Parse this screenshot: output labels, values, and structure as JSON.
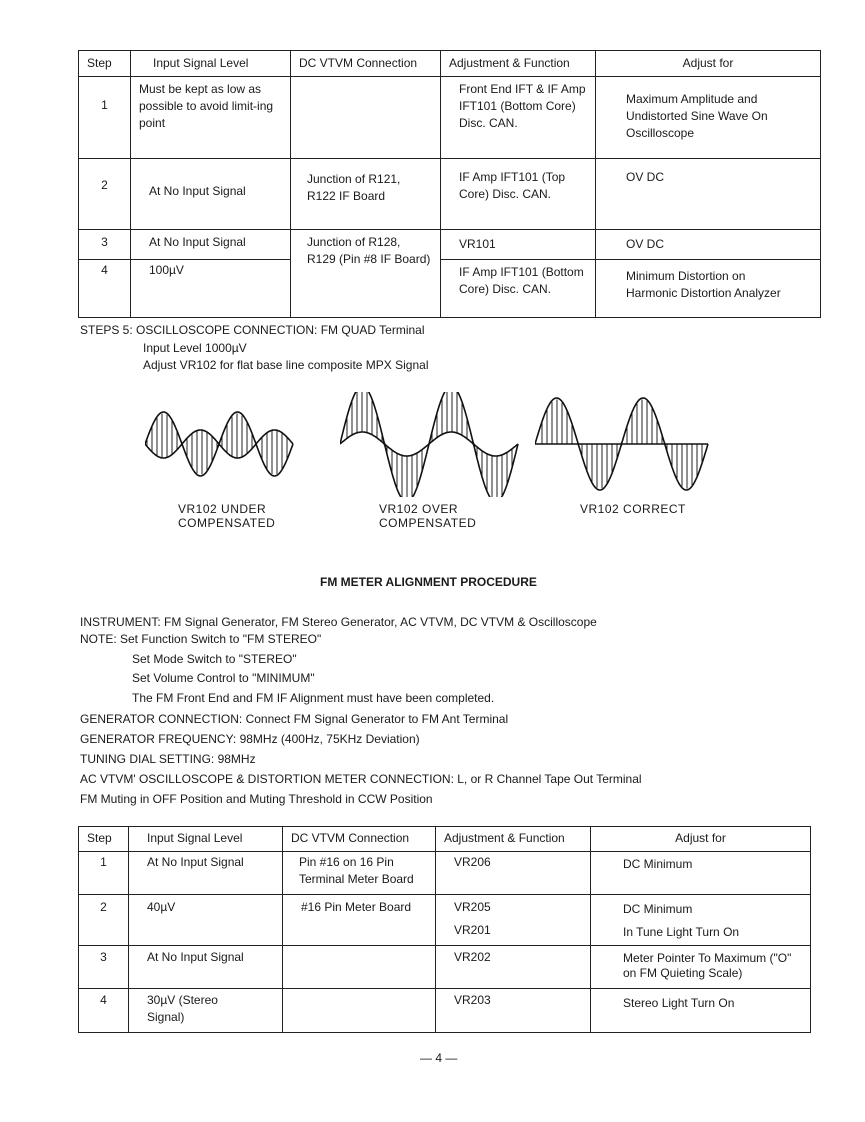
{
  "table1": {
    "headers": [
      "Step",
      "Input Signal Level",
      "DC VTVM Connection",
      "Adjustment & Function",
      "Adjust for"
    ],
    "rows": [
      {
        "step": "1",
        "input": "Must be kept as low as possible to avoid limit-ing point",
        "dc": "",
        "adj": "Front End IFT & IF Amp IFT101 (Bottom Core) Disc. CAN.",
        "for": "Maximum Amplitude and Undistorted Sine Wave On Oscilloscope"
      },
      {
        "step": "2",
        "input": "At No Input Signal",
        "dc": "Junction of R121, R122 IF Board",
        "adj": "IF Amp IFT101 (Top Core) Disc. CAN.",
        "for": "OV DC"
      },
      {
        "step": "3",
        "input": "At No Input Signal",
        "dc": "Junction of R128, R129 (Pin #8 IF Board)",
        "adj": "VR101",
        "for": "OV DC"
      },
      {
        "step": "4",
        "input": "100µV",
        "adj": "IF Amp IFT101 (Bottom Core) Disc. CAN.",
        "for": "Minimum Distortion on Harmonic Distortion Analyzer"
      }
    ]
  },
  "steps5": {
    "line1": "STEPS 5:  OSCILLOSCOPE CONNECTION: FM QUAD Terminal",
    "line2": "Input Level 1000µV",
    "line3": "Adjust VR102 for flat base line composite MPX Signal"
  },
  "waveforms": [
    {
      "label1": "VR102 UNDER",
      "label2": "COMPENSATED"
    },
    {
      "label1": "VR102 OVER",
      "label2": "COMPENSATED"
    },
    {
      "label1": "VR102 CORRECT",
      "label2": ""
    }
  ],
  "section_title": "FM METER ALIGNMENT PROCEDURE",
  "instructions": [
    "INSTRUMENT:  FM Signal Generator, FM Stereo Generator, AC VTVM, DC VTVM & Oscilloscope",
    "NOTE:  Set Function Switch to \"FM STEREO\"",
    "Set Mode Switch to \"STEREO\"",
    "Set Volume Control to \"MINIMUM\"",
    "The FM Front End and FM IF Alignment must have been completed.",
    "GENERATOR CONNECTION:  Connect FM Signal Generator to FM Ant Terminal",
    "GENERATOR FREQUENCY:  98MHz (400Hz, 75KHz Deviation)",
    "TUNING DIAL SETTING:  98MHz",
    "AC VTVM' OSCILLOSCOPE & DISTORTION METER CONNECTION:  L, or R Channel Tape Out Terminal",
    "FM Muting in OFF Position and Muting Threshold in CCW Position"
  ],
  "table2": {
    "headers": [
      "Step",
      "Input Signal Level",
      "DC VTVM Connection",
      "Adjustment & Function",
      "Adjust for"
    ],
    "rows": [
      {
        "step": "1",
        "input": "At No Input Signal",
        "dc": "Pin #16 on 16 Pin Terminal Meter Board",
        "adj": "VR206",
        "adj2": "",
        "for": "DC Minimum",
        "for2": ""
      },
      {
        "step": "2",
        "input": "40µV",
        "dc": "#16 Pin Meter Board",
        "adj": "VR205",
        "adj2": "VR201",
        "for": "DC Minimum",
        "for2": "In Tune Light Turn On"
      },
      {
        "step": "3",
        "input": "At No Input Signal",
        "dc": "",
        "adj": "VR202",
        "adj2": "",
        "for": "Meter Pointer To Maximum (\"O\" on FM Quieting Scale)",
        "for2": ""
      },
      {
        "step": "4",
        "input": "30µV (Stereo Signal)",
        "dc": "",
        "adj": "VR203",
        "adj2": "",
        "for": "Stereo Light Turn On",
        "for2": ""
      }
    ]
  },
  "page_number": "— 4 —"
}
